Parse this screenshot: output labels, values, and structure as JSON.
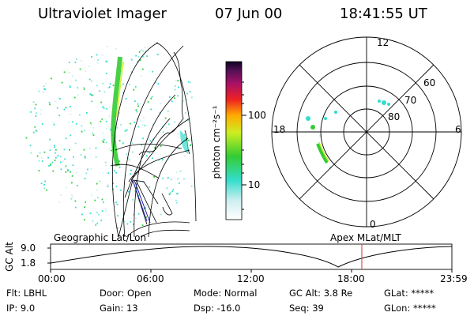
{
  "header": {
    "instrument": "Ultraviolet Imager",
    "date": "07 Jun 00",
    "time": "18:41:55 UT"
  },
  "colorbar": {
    "label": "photon cm⁻²s⁻¹",
    "ticks": [
      "100",
      "10"
    ]
  },
  "polar_plot": {
    "mlt_labels": [
      "12",
      "18",
      "6",
      "0"
    ],
    "mlat_labels": [
      "60",
      "70",
      "80"
    ]
  },
  "timeline": {
    "left_label": "Geographic Lat/Lon",
    "right_label": "Apex MLat/MLT",
    "y_axis_label": "GC Alt",
    "y_ticks": [
      "9.0",
      "1.8"
    ],
    "x_ticks": [
      "00:00",
      "06:00",
      "12:00",
      "18:00",
      "23:59"
    ]
  },
  "info": {
    "row1": {
      "flt": "Flt: LBHL",
      "door": "Door: Open",
      "mode": "Mode: Normal",
      "gc_alt": "GC Alt: 3.8 Re",
      "glat": "GLat: *****"
    },
    "row2": {
      "ip": "IP:  9.0",
      "gain": "Gain: 13",
      "dsp": "Dsp:  -16.0",
      "seq": "Seq: 39",
      "glon": "GLon: *****"
    }
  },
  "colors": {
    "accent_green": "#33cc33",
    "accent_cyan": "#33ddcc",
    "current_time_marker": "#cc3333",
    "line": "#000000"
  }
}
